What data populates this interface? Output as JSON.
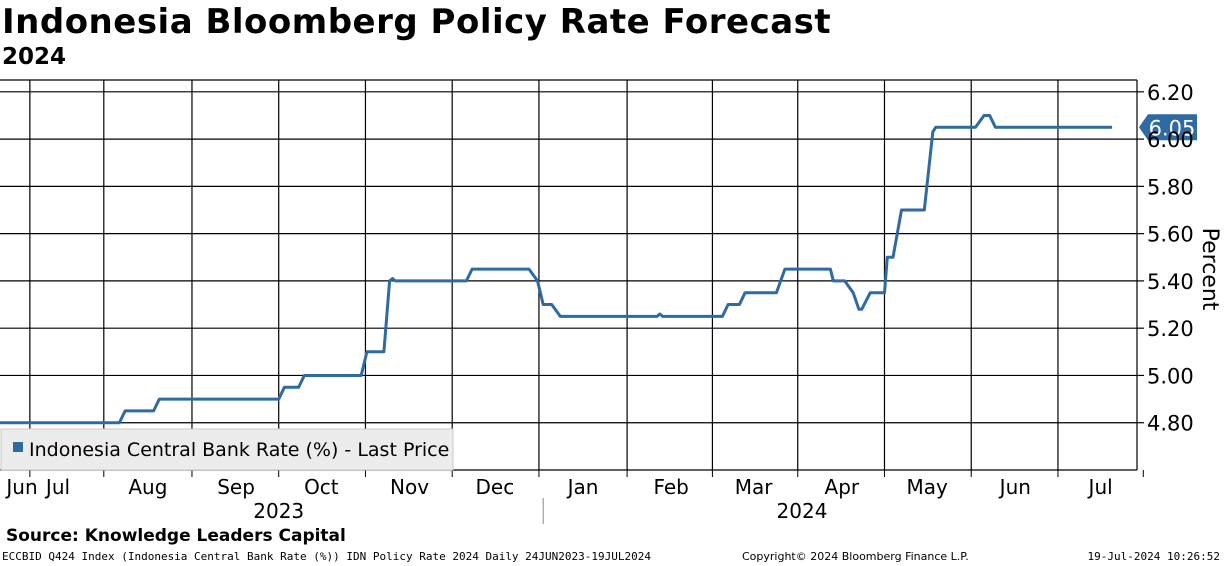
{
  "title": "Indonesia Bloomberg Policy Rate Forecast",
  "subtitle": "2024",
  "source": "Source: Knowledge Leaders Capital",
  "footer": {
    "left": "ECCBID Q424 Index (Indonesia Central Bank Rate (%)) IDN Policy Rate 2024  Daily 24JUN2023-19JUL2024",
    "mid": "Copyright© 2024 Bloomberg Finance L.P.",
    "right": "19-Jul-2024 10:26:52"
  },
  "colors": {
    "line": "#2f6aa3",
    "grid": "#000000",
    "legend_bg": "#ececec"
  },
  "chart_data": {
    "type": "line",
    "title": "Indonesia Bloomberg Policy Rate Forecast",
    "subtitle": "2024",
    "ylabel": "Percent",
    "ylim": [
      4.6,
      6.25
    ],
    "yticks": [
      4.8,
      5.0,
      5.2,
      5.4,
      5.6,
      5.8,
      6.0,
      6.2
    ],
    "ytick_labels": [
      "4.80",
      "5.00",
      "5.20",
      "5.40",
      "5.60",
      "5.80",
      "6.00",
      "6.20"
    ],
    "x_range": [
      "2023-06-24",
      "2024-07-19"
    ],
    "month_ticks": [
      {
        "label": "Jun",
        "date": "2023-06-24"
      },
      {
        "label": "Jul",
        "date": "2023-07-15"
      },
      {
        "label": "Aug",
        "date": "2023-08-15"
      },
      {
        "label": "Sep",
        "date": "2023-09-15"
      },
      {
        "label": "Oct",
        "date": "2023-10-15"
      },
      {
        "label": "Nov",
        "date": "2023-11-15"
      },
      {
        "label": "Dec",
        "date": "2023-12-15"
      },
      {
        "label": "Jan",
        "date": "2024-01-15"
      },
      {
        "label": "Feb",
        "date": "2024-02-15"
      },
      {
        "label": "Mar",
        "date": "2024-03-15"
      },
      {
        "label": "Apr",
        "date": "2024-04-15"
      },
      {
        "label": "May",
        "date": "2024-05-15"
      },
      {
        "label": "Jun",
        "date": "2024-06-15"
      },
      {
        "label": "Jul",
        "date": "2024-07-15"
      }
    ],
    "year_labels": [
      {
        "label": "2023",
        "date": "2023-09-30"
      },
      {
        "label": "2024",
        "date": "2024-04-01"
      }
    ],
    "year_divider": "2024-01-01",
    "legend": "Indonesia Central Bank Rate (%) - Last Price",
    "last_value": 6.05,
    "last_value_label": "6.05",
    "series": [
      {
        "name": "Indonesia Central Bank Rate (%) - Last Price",
        "points": [
          [
            "2023-06-24",
            4.8
          ],
          [
            "2023-08-05",
            4.8
          ],
          [
            "2023-08-07",
            4.85
          ],
          [
            "2023-08-17",
            4.85
          ],
          [
            "2023-08-19",
            4.9
          ],
          [
            "2023-09-30",
            4.9
          ],
          [
            "2023-10-02",
            4.95
          ],
          [
            "2023-10-07",
            4.95
          ],
          [
            "2023-10-09",
            5.0
          ],
          [
            "2023-10-29",
            5.0
          ],
          [
            "2023-10-31",
            5.1
          ],
          [
            "2023-11-06",
            5.1
          ],
          [
            "2023-11-08",
            5.4
          ],
          [
            "2023-11-09",
            5.41
          ],
          [
            "2023-11-10",
            5.4
          ],
          [
            "2023-12-05",
            5.4
          ],
          [
            "2023-12-07",
            5.45
          ],
          [
            "2023-12-27",
            5.45
          ],
          [
            "2023-12-30",
            5.4
          ],
          [
            "2024-01-01",
            5.3
          ],
          [
            "2024-01-04",
            5.3
          ],
          [
            "2024-01-07",
            5.25
          ],
          [
            "2024-02-10",
            5.25
          ],
          [
            "2024-02-11",
            5.26
          ],
          [
            "2024-02-12",
            5.25
          ],
          [
            "2024-03-04",
            5.25
          ],
          [
            "2024-03-06",
            5.3
          ],
          [
            "2024-03-10",
            5.3
          ],
          [
            "2024-03-12",
            5.35
          ],
          [
            "2024-03-23",
            5.35
          ],
          [
            "2024-03-26",
            5.45
          ],
          [
            "2024-04-11",
            5.45
          ],
          [
            "2024-04-12",
            5.4
          ],
          [
            "2024-04-16",
            5.4
          ],
          [
            "2024-04-19",
            5.35
          ],
          [
            "2024-04-21",
            5.28
          ],
          [
            "2024-04-22",
            5.28
          ],
          [
            "2024-04-25",
            5.35
          ],
          [
            "2024-04-30",
            5.35
          ],
          [
            "2024-05-01",
            5.5
          ],
          [
            "2024-05-03",
            5.5
          ],
          [
            "2024-05-06",
            5.7
          ],
          [
            "2024-05-14",
            5.7
          ],
          [
            "2024-05-17",
            6.03
          ],
          [
            "2024-05-18",
            6.05
          ],
          [
            "2024-06-01",
            6.05
          ],
          [
            "2024-06-04",
            6.1
          ],
          [
            "2024-06-06",
            6.1
          ],
          [
            "2024-06-08",
            6.05
          ],
          [
            "2024-07-19",
            6.05
          ]
        ]
      }
    ]
  }
}
